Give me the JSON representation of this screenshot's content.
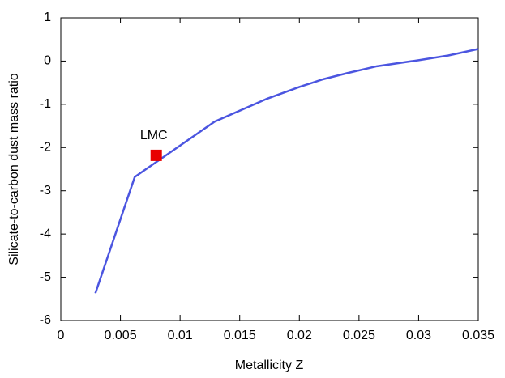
{
  "chart_data": {
    "type": "line",
    "x_label": "Metallicity Z",
    "y_label": "Silicate-to-carbon dust mass ratio",
    "x": [
      0.0029,
      0.0062,
      0.0129,
      0.0173,
      0.02,
      0.022,
      0.024,
      0.0265,
      0.03,
      0.0325,
      0.035
    ],
    "values": [
      -5.37,
      -2.68,
      -1.4,
      -0.87,
      -0.6,
      -0.42,
      -0.28,
      -0.12,
      0.02,
      0.13,
      0.28
    ],
    "color": "#4b55e0",
    "annotations": [
      {
        "text": "LMC",
        "x": 0.008,
        "y": -2.18,
        "color": "#e80000"
      }
    ],
    "xlim": [
      0,
      0.035
    ],
    "xticks": [
      0,
      0.005,
      0.01,
      0.015,
      0.02,
      0.025,
      0.03,
      0.035
    ],
    "ylim": [
      -6,
      1
    ],
    "yticks": [
      -6,
      -5,
      -4,
      -3,
      -2,
      -1,
      0,
      1
    ]
  }
}
